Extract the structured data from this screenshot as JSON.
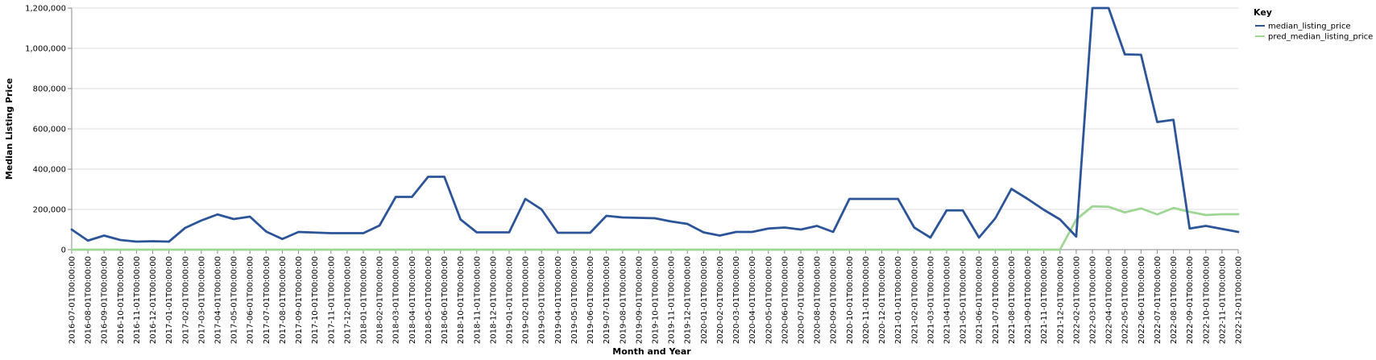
{
  "chart_data": {
    "type": "line",
    "xlabel": "Month and Year",
    "ylabel": "Median Listing Price",
    "ylim": [
      0,
      1200000
    ],
    "yticks": [
      0,
      200000,
      400000,
      600000,
      800000,
      1000000,
      1200000
    ],
    "ytick_labels": [
      "0",
      "200,000",
      "400,000",
      "600,000",
      "800,000",
      "1,000,000",
      "1,200,000"
    ],
    "grid": true,
    "legend": {
      "title": "Key",
      "position": "top-right"
    },
    "categories": [
      "2016-07-01T00:00:00",
      "2016-08-01T00:00:00",
      "2016-09-01T00:00:00",
      "2016-10-01T00:00:00",
      "2016-11-01T00:00:00",
      "2016-12-01T00:00:00",
      "2017-01-01T00:00:00",
      "2017-02-01T00:00:00",
      "2017-03-01T00:00:00",
      "2017-04-01T00:00:00",
      "2017-05-01T00:00:00",
      "2017-06-01T00:00:00",
      "2017-07-01T00:00:00",
      "2017-08-01T00:00:00",
      "2017-09-01T00:00:00",
      "2017-10-01T00:00:00",
      "2017-11-01T00:00:00",
      "2017-12-01T00:00:00",
      "2018-01-01T00:00:00",
      "2018-02-01T00:00:00",
      "2018-03-01T00:00:00",
      "2018-04-01T00:00:00",
      "2018-05-01T00:00:00",
      "2018-06-01T00:00:00",
      "2018-10-01T00:00:00",
      "2018-11-01T00:00:00",
      "2018-12-01T00:00:00",
      "2019-01-01T00:00:00",
      "2019-02-01T00:00:00",
      "2019-03-01T00:00:00",
      "2019-04-01T00:00:00",
      "2019-05-01T00:00:00",
      "2019-06-01T00:00:00",
      "2019-07-01T00:00:00",
      "2019-08-01T00:00:00",
      "2019-09-01T00:00:00",
      "2019-10-01T00:00:00",
      "2019-11-01T00:00:00",
      "2019-12-01T00:00:00",
      "2020-01-01T00:00:00",
      "2020-02-01T00:00:00",
      "2020-03-01T00:00:00",
      "2020-04-01T00:00:00",
      "2020-05-01T00:00:00",
      "2020-06-01T00:00:00",
      "2020-07-01T00:00:00",
      "2020-08-01T00:00:00",
      "2020-09-01T00:00:00",
      "2020-10-01T00:00:00",
      "2020-11-01T00:00:00",
      "2020-12-01T00:00:00",
      "2021-01-01T00:00:00",
      "2021-02-01T00:00:00",
      "2021-03-01T00:00:00",
      "2021-04-01T00:00:00",
      "2021-05-01T00:00:00",
      "2021-06-01T00:00:00",
      "2021-07-01T00:00:00",
      "2021-08-01T00:00:00",
      "2021-09-01T00:00:00",
      "2021-11-01T00:00:00",
      "2021-12-01T00:00:00",
      "2022-02-01T00:00:00",
      "2022-03-01T00:00:00",
      "2022-04-01T00:00:00",
      "2022-05-01T00:00:00",
      "2022-06-01T00:00:00",
      "2022-07-01T00:00:00",
      "2022-08-01T00:00:00",
      "2022-09-01T00:00:00",
      "2022-10-01T00:00:00",
      "2022-11-01T00:00:00",
      "2022-12-01T00:00:00"
    ],
    "series": [
      {
        "name": "median_listing_price",
        "color": "#2c5599",
        "values": [
          100000,
          45000,
          70000,
          48000,
          40000,
          42000,
          40000,
          108000,
          145000,
          175000,
          152000,
          164000,
          90000,
          53000,
          88000,
          85000,
          82000,
          82000,
          82000,
          120000,
          262000,
          262000,
          362000,
          362000,
          150000,
          86000,
          86000,
          86000,
          252000,
          200000,
          84000,
          84000,
          84000,
          168000,
          160000,
          158000,
          156000,
          140000,
          128000,
          86000,
          70000,
          88000,
          88000,
          105000,
          110000,
          100000,
          118000,
          88000,
          252000,
          252000,
          252000,
          252000,
          110000,
          60000,
          195000,
          195000,
          60000,
          155000,
          302000,
          252000,
          198000,
          150000,
          65000,
          1200000,
          1200000,
          970000,
          968000,
          634000,
          645000,
          105000,
          118000,
          103000,
          88000
        ]
      },
      {
        "name": "pred_median_listing_price",
        "color": "#9fd694",
        "values": [
          0,
          0,
          0,
          0,
          0,
          0,
          0,
          0,
          0,
          0,
          0,
          0,
          0,
          0,
          0,
          0,
          0,
          0,
          0,
          0,
          0,
          0,
          0,
          0,
          0,
          0,
          0,
          0,
          0,
          0,
          0,
          0,
          0,
          0,
          0,
          0,
          0,
          0,
          0,
          0,
          0,
          0,
          0,
          0,
          0,
          0,
          0,
          0,
          0,
          0,
          0,
          0,
          0,
          0,
          0,
          0,
          0,
          0,
          0,
          0,
          0,
          0,
          150000,
          215000,
          213000,
          185000,
          205000,
          175000,
          207000,
          188000,
          172000,
          176000,
          176000
        ]
      }
    ]
  }
}
